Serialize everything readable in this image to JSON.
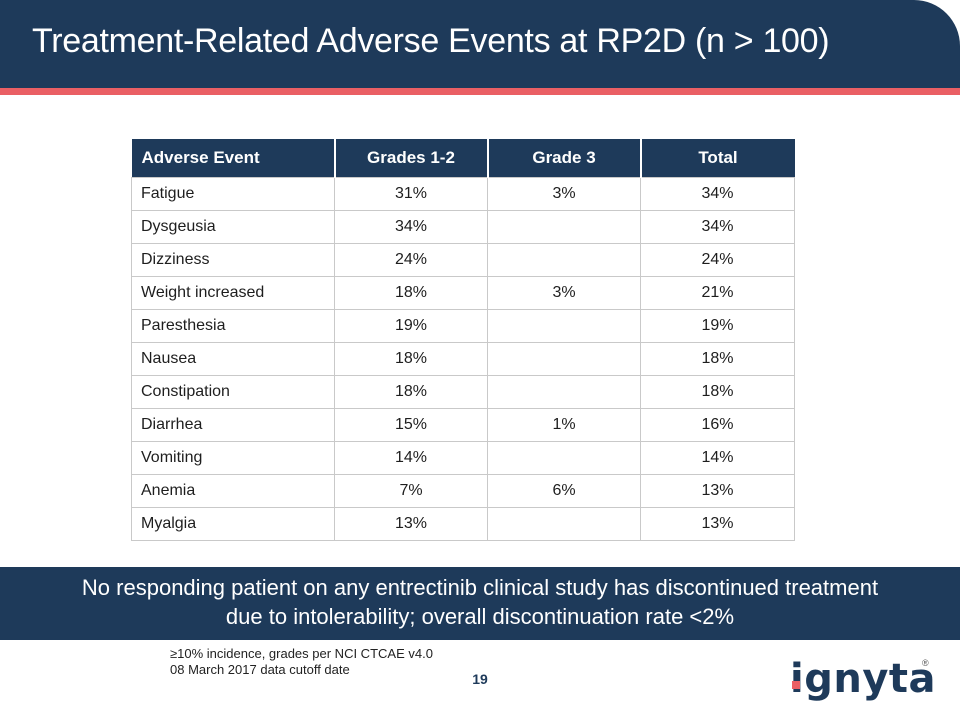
{
  "header": {
    "title": "Treatment-Related Adverse Events at RP2D (n > 100)"
  },
  "table": {
    "columns": [
      "Adverse Event",
      "Grades 1-2",
      "Grade 3",
      "Total"
    ],
    "rows": [
      [
        "Fatigue",
        "31%",
        "3%",
        "34%"
      ],
      [
        "Dysgeusia",
        "34%",
        "",
        "34%"
      ],
      [
        "Dizziness",
        "24%",
        "",
        "24%"
      ],
      [
        "Weight increased",
        "18%",
        "3%",
        "21%"
      ],
      [
        "Paresthesia",
        "19%",
        "",
        "19%"
      ],
      [
        "Nausea",
        "18%",
        "",
        "18%"
      ],
      [
        "Constipation",
        "18%",
        "",
        "18%"
      ],
      [
        "Diarrhea",
        "15%",
        "1%",
        "16%"
      ],
      [
        "Vomiting",
        "14%",
        "",
        "14%"
      ],
      [
        "Anemia",
        "7%",
        "6%",
        "13%"
      ],
      [
        "Myalgia",
        "13%",
        "",
        "13%"
      ]
    ]
  },
  "banner": {
    "line1": "No responding patient on any entrectinib clinical study has discontinued treatment",
    "line2": "due to intolerability; overall discontinuation rate <2%"
  },
  "footnotes": {
    "line1": "≥10% incidence, grades per NCI CTCAE v4.0",
    "line2": "08 March 2017 data cutoff date"
  },
  "page_number": "19",
  "logo": {
    "text": "ignyta",
    "mark": "®"
  },
  "colors": {
    "navy": "#1e3a5a",
    "accent": "#ea5f64"
  }
}
